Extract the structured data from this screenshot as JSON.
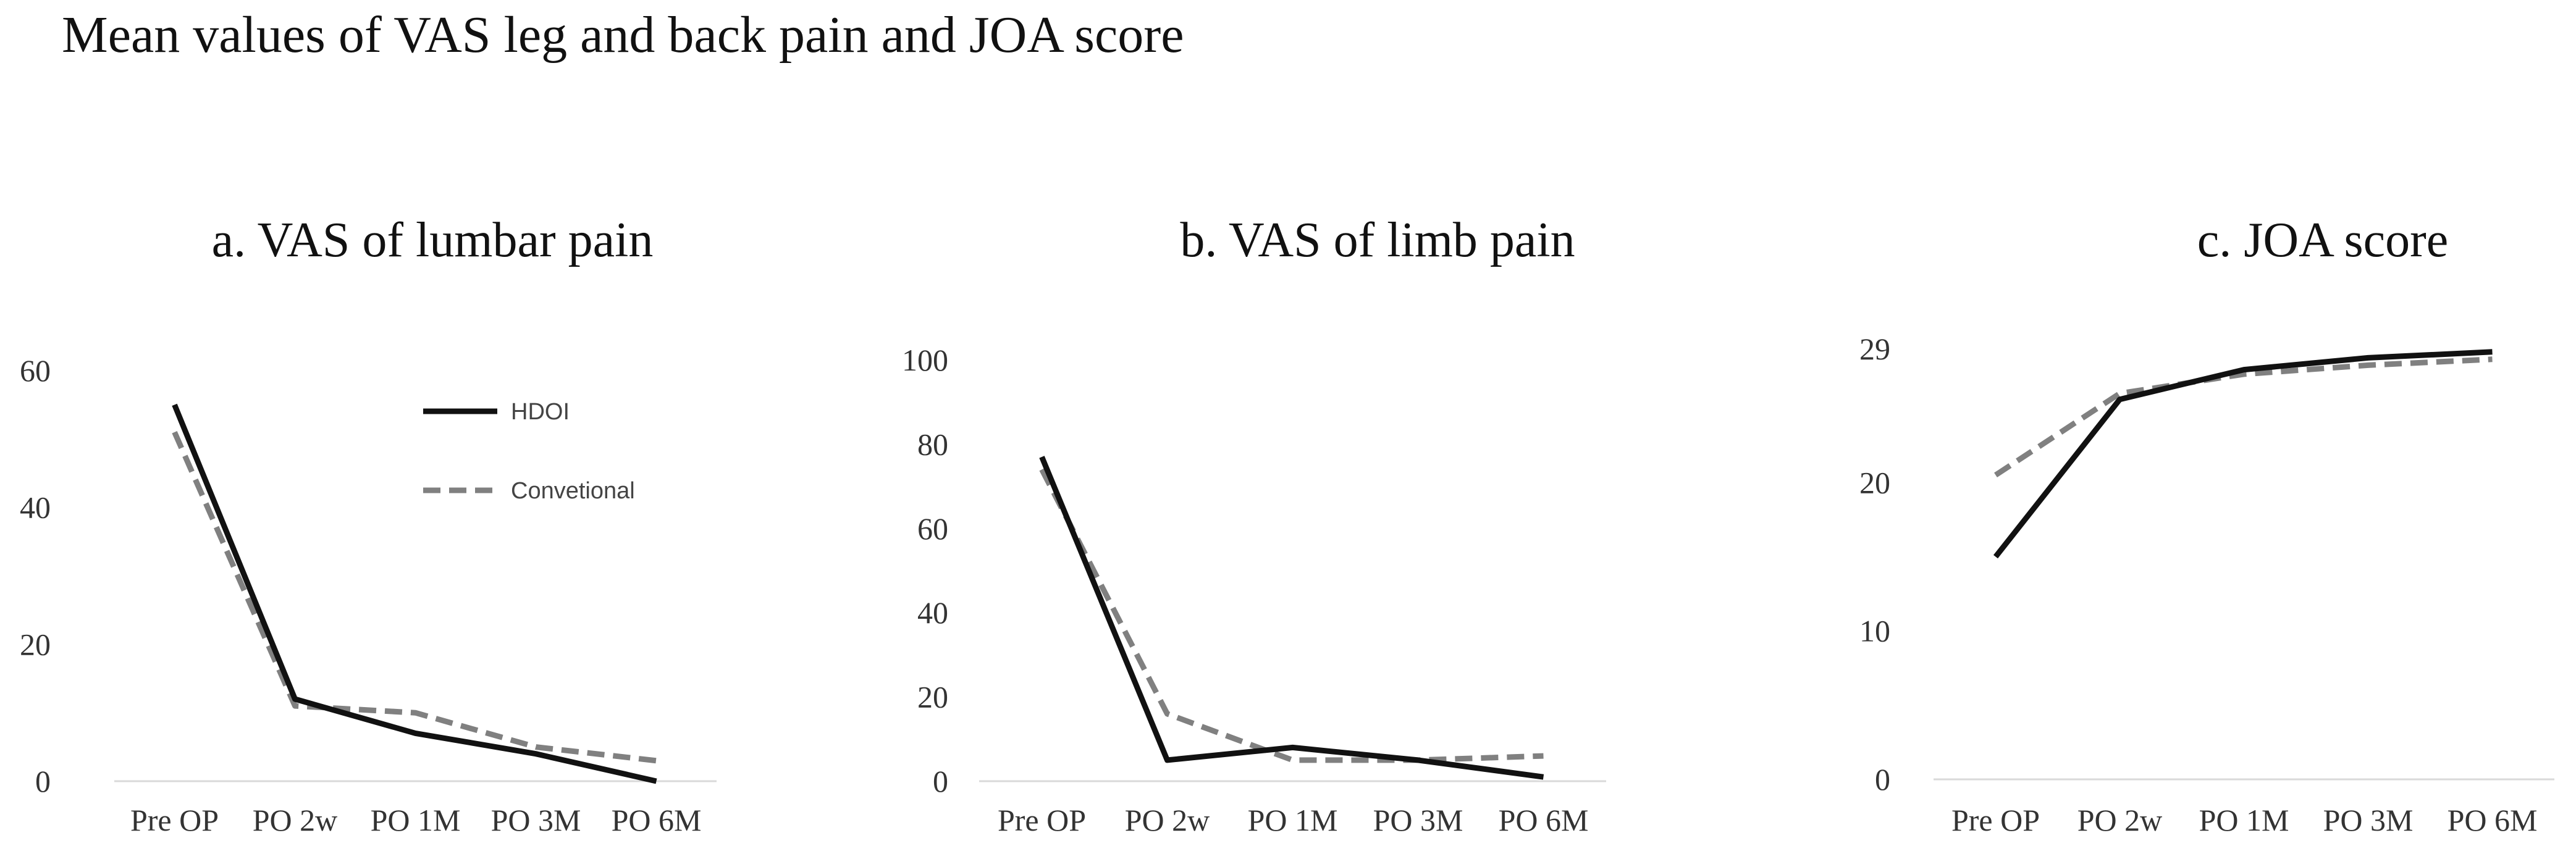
{
  "title": "Mean values of VAS leg and back pain and JOA score",
  "colors": {
    "hdoi": "#111111",
    "conventional": "#808080"
  },
  "chart_data": [
    {
      "type": "line",
      "title": "a. VAS of lumbar pain",
      "categories": [
        "Pre OP",
        "PO 2w",
        "PO 1M",
        "PO 3M",
        "PO 6M"
      ],
      "ylim": [
        0,
        60
      ],
      "yticks": [
        0,
        20,
        40,
        60
      ],
      "legend": "top-right",
      "series": [
        {
          "name": "HDOI",
          "style": "solid",
          "values": [
            55,
            12,
            7,
            4,
            0
          ]
        },
        {
          "name": "Convetional",
          "style": "dashed",
          "values": [
            51,
            11,
            10,
            5,
            3
          ]
        }
      ]
    },
    {
      "type": "line",
      "title": "b. VAS of limb pain",
      "categories": [
        "Pre OP",
        "PO 2w",
        "PO 1M",
        "PO 3M",
        "PO 6M"
      ],
      "ylim": [
        0,
        100
      ],
      "yticks": [
        0,
        20,
        40,
        60,
        80,
        100
      ],
      "series": [
        {
          "name": "HDOI",
          "style": "solid",
          "values": [
            77,
            5,
            8,
            5,
            1
          ]
        },
        {
          "name": "Convetional",
          "style": "dashed",
          "values": [
            74,
            16,
            5,
            5,
            6
          ]
        }
      ]
    },
    {
      "type": "line",
      "title": "c. JOA score",
      "categories": [
        "Pre OP",
        "PO 2w",
        "PO 1M",
        "PO 3M",
        "PO 6M"
      ],
      "ylim": [
        0,
        29
      ],
      "yticks": [
        0,
        10,
        20,
        29
      ],
      "series": [
        {
          "name": "HDOI",
          "style": "solid",
          "values": [
            15,
            25.6,
            27.6,
            28.4,
            28.8
          ]
        },
        {
          "name": "Convetional",
          "style": "dashed",
          "values": [
            20.5,
            26,
            27.3,
            27.9,
            28.3
          ]
        }
      ]
    }
  ]
}
